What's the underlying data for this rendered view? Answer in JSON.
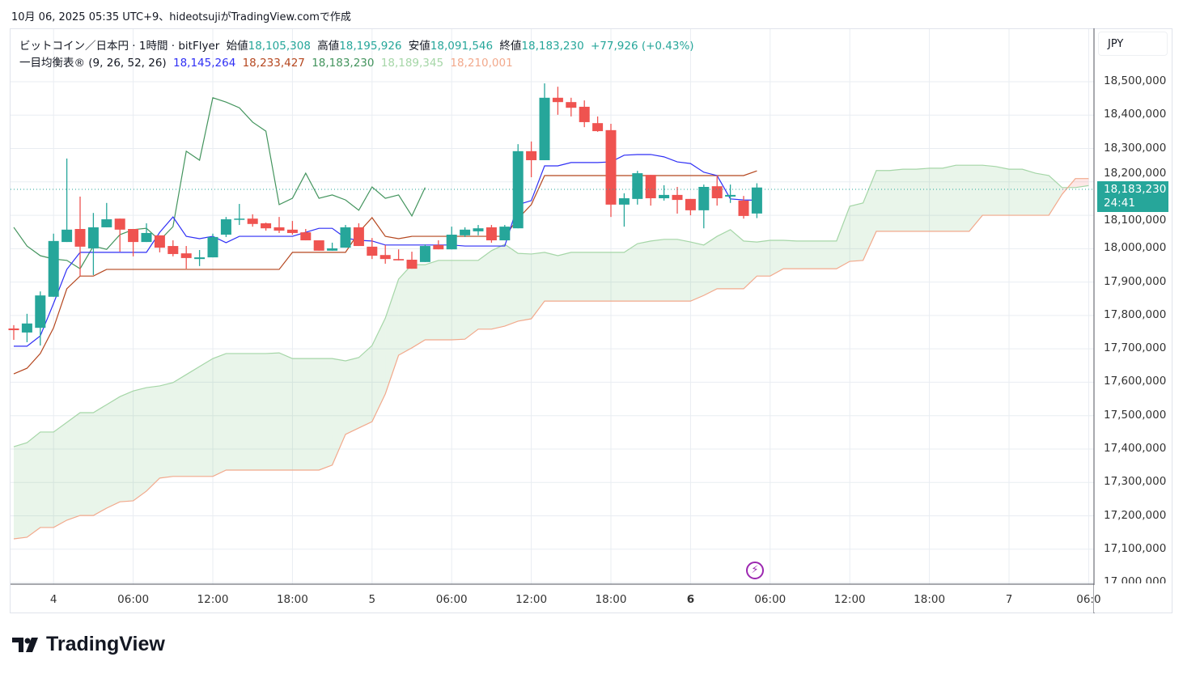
{
  "header": {
    "caption": "10月 06, 2025 05:35 UTC+9、hideotsujiがTradingView.comで作成"
  },
  "legend": {
    "symbol": "ビットコイン／日本円 · 1時間 · bitFlyer",
    "open_label": "始値",
    "open": "18,105,308",
    "high_label": "高値",
    "high": "18,195,926",
    "low_label": "安値",
    "low": "18,091,546",
    "close_label": "終値",
    "close": "18,183,230",
    "change": "+77,926 (+0.43%)",
    "indicator": "一目均衡表® (9, 26, 52, 26)",
    "tenkan": "18,145,264",
    "kijun": "18,233,427",
    "chikou": "18,183,230",
    "senkou_a": "18,189,345",
    "senkou_b": "18,210,001"
  },
  "price_axis": {
    "currency": "JPY",
    "last_price": "18,183,230",
    "countdown": "24:41"
  },
  "brand": {
    "name": "TradingView"
  },
  "colors": {
    "up": "#26a69a",
    "down": "#ef5350",
    "tenkan": "#2f2ff5",
    "kijun": "#b5471f",
    "chikou": "#43945d",
    "senkou_a": "#a5d6a7",
    "senkou_b": "#f2a98c",
    "cloud_up": "rgba(76,175,80,0.12)",
    "cloud_down": "rgba(244,67,54,0.12)"
  },
  "chart_data": {
    "type": "candlestick",
    "title": "ビットコイン／日本円 · 1時間 · bitFlyer",
    "interval": "1h",
    "price_unit": "JPY thousands",
    "ylim": [
      17000,
      18550
    ],
    "y_ticks": [
      "18,500,000",
      "18,400,000",
      "18,300,000",
      "18,200,000",
      "18,100,000",
      "18,000,000",
      "17,900,000",
      "17,800,000",
      "17,700,000",
      "17,600,000",
      "17,500,000",
      "17,400,000",
      "17,300,000",
      "17,200,000",
      "17,100,000",
      "17,000,000"
    ],
    "x_ticks": [
      {
        "bar": 3,
        "label": "4",
        "bold": false
      },
      {
        "bar": 9,
        "label": "06:00",
        "bold": false
      },
      {
        "bar": 15,
        "label": "12:00",
        "bold": false
      },
      {
        "bar": 21,
        "label": "18:00",
        "bold": false
      },
      {
        "bar": 27,
        "label": "5",
        "bold": false
      },
      {
        "bar": 33,
        "label": "06:00",
        "bold": false
      },
      {
        "bar": 39,
        "label": "12:00",
        "bold": false
      },
      {
        "bar": 45,
        "label": "18:00",
        "bold": false
      },
      {
        "bar": 51,
        "label": "6",
        "bold": true
      },
      {
        "bar": 57,
        "label": "06:00",
        "bold": false
      },
      {
        "bar": 63,
        "label": "12:00",
        "bold": false
      },
      {
        "bar": 69,
        "label": "18:00",
        "bold": false
      },
      {
        "bar": 75,
        "label": "7",
        "bold": false
      },
      {
        "bar": 81,
        "label": "06:0",
        "bold": false
      }
    ],
    "ohlc": [
      [
        17761,
        17771,
        17727,
        17756
      ],
      [
        17749,
        17805,
        17720,
        17776
      ],
      [
        17763,
        17872,
        17710,
        17860
      ],
      [
        17856,
        18045,
        17856,
        18023
      ],
      [
        18020,
        18270,
        18020,
        18057
      ],
      [
        18059,
        18156,
        17918,
        18006
      ],
      [
        18001,
        18107,
        17921,
        18064
      ],
      [
        18064,
        18137,
        18064,
        18088
      ],
      [
        18090,
        18090,
        17991,
        18057
      ],
      [
        18059,
        18059,
        17977,
        18020
      ],
      [
        18020,
        18076,
        18020,
        18047
      ],
      [
        18040,
        18040,
        17989,
        18003
      ],
      [
        18008,
        18025,
        17977,
        17984
      ],
      [
        17986,
        18008,
        17940,
        17972
      ],
      [
        17969,
        17996,
        17948,
        17974
      ],
      [
        17974,
        18045,
        17974,
        18035
      ],
      [
        18042,
        18095,
        18035,
        18088
      ],
      [
        18088,
        18134,
        18071,
        18090
      ],
      [
        18090,
        18103,
        18066,
        18074
      ],
      [
        18076,
        18078,
        18054,
        18061
      ],
      [
        18064,
        18095,
        18047,
        18054
      ],
      [
        18057,
        18083,
        18042,
        18047
      ],
      [
        18049,
        18059,
        18025,
        18025
      ],
      [
        18025,
        18025,
        17994,
        17994
      ],
      [
        17994,
        18018,
        17994,
        18001
      ],
      [
        18003,
        18071,
        18003,
        18064
      ],
      [
        18064,
        18076,
        18008,
        18008
      ],
      [
        18006,
        18032,
        17969,
        17979
      ],
      [
        17981,
        18011,
        17955,
        17969
      ],
      [
        17969,
        17998,
        17965,
        17965
      ],
      [
        17967,
        17991,
        17940,
        17940
      ],
      [
        17960,
        18013,
        17960,
        18008
      ],
      [
        18011,
        18025,
        17998,
        17998
      ],
      [
        17998,
        18066,
        17998,
        18042
      ],
      [
        18040,
        18064,
        18035,
        18057
      ],
      [
        18052,
        18071,
        18040,
        18061
      ],
      [
        18064,
        18071,
        18018,
        18025
      ],
      [
        18025,
        18071,
        18025,
        18066
      ],
      [
        18061,
        18313,
        18061,
        18292
      ],
      [
        18292,
        18321,
        18214,
        18265
      ],
      [
        18265,
        18495,
        18265,
        18452
      ],
      [
        18452,
        18485,
        18401,
        18439
      ],
      [
        18439,
        18452,
        18396,
        18422
      ],
      [
        18425,
        18444,
        18364,
        18379
      ],
      [
        18376,
        18396,
        18350,
        18352
      ],
      [
        18355,
        18374,
        18095,
        18132
      ],
      [
        18132,
        18166,
        18066,
        18151
      ],
      [
        18149,
        18233,
        18132,
        18226
      ],
      [
        18221,
        18221,
        18129,
        18151
      ],
      [
        18151,
        18190,
        18144,
        18161
      ],
      [
        18161,
        18185,
        18105,
        18146
      ],
      [
        18149,
        18149,
        18100,
        18115
      ],
      [
        18115,
        18192,
        18061,
        18185
      ],
      [
        18187,
        18219,
        18129,
        18151
      ],
      [
        18156,
        18192,
        18137,
        18161
      ],
      [
        18144,
        18158,
        18090,
        18098
      ],
      [
        18105.308,
        18195.926,
        18091.546,
        18183.23
      ]
    ],
    "tenkan": [
      17708,
      17708,
      17739,
      17836,
      17938,
      17989,
      17989,
      17989,
      17989,
      17989,
      17989,
      18049,
      18095,
      18037,
      18030,
      18037,
      18018,
      18037,
      18037,
      18037,
      18037,
      18037,
      18049,
      18061,
      18061,
      18032,
      18025,
      18023,
      18011,
      18011,
      18011,
      18011,
      18011,
      18011,
      18008,
      18008,
      18008,
      18008,
      18132,
      18144,
      18248,
      18248,
      18258,
      18258,
      18258,
      18260,
      18280,
      18282,
      18282,
      18275,
      18260,
      18255,
      18229,
      18219,
      18149,
      18146,
      18145
    ],
    "kijun": [
      17625,
      17642,
      17686,
      17763,
      17880,
      17918,
      17918,
      17938,
      17938,
      17938,
      17938,
      17938,
      17938,
      17938,
      17938,
      17938,
      17938,
      17938,
      17938,
      17938,
      17938,
      17989,
      17989,
      17989,
      17989,
      17989,
      18049,
      18093,
      18037,
      18030,
      18037,
      18037,
      18037,
      18037,
      18037,
      18037,
      18037,
      18037,
      18090,
      18132,
      18219,
      18219,
      18219,
      18219,
      18219,
      18219,
      18219,
      18219,
      18219,
      18219,
      18219,
      18219,
      18219,
      18219,
      18219,
      18219,
      18233
    ],
    "chikou_shift": 25,
    "senkou_a": [
      17407,
      17419,
      17451,
      17451,
      17480,
      17509,
      17509,
      17533,
      17557,
      17574,
      17584,
      17589,
      17599,
      17623,
      17647,
      17671,
      17686,
      17686,
      17686,
      17686,
      17688,
      17671,
      17671,
      17671,
      17671,
      17664,
      17674,
      17710,
      17792,
      17909,
      17952,
      17952,
      17965,
      17965,
      17965,
      17965,
      17994,
      18013,
      17986,
      17984,
      17989,
      17979,
      17989,
      17989,
      17989,
      17989,
      17989,
      18015,
      18023,
      18028,
      18028,
      18020,
      18011,
      18037,
      18057,
      18023,
      18020,
      18025,
      18025,
      18023,
      18023,
      18023,
      18023,
      18127,
      18137,
      18234,
      18234,
      18238,
      18238,
      18241,
      18241,
      18250,
      18250,
      18250,
      18246,
      18238,
      18238,
      18226,
      18219,
      18183,
      18183,
      18189
    ],
    "senkou_b": [
      17131,
      17136,
      17165,
      17165,
      17187,
      17201,
      17201,
      17223,
      17242,
      17245,
      17274,
      17313,
      17318,
      17318,
      17318,
      17318,
      17337,
      17337,
      17337,
      17337,
      17337,
      17337,
      17337,
      17337,
      17352,
      17444,
      17463,
      17482,
      17565,
      17681,
      17703,
      17727,
      17727,
      17727,
      17729,
      17759,
      17759,
      17768,
      17783,
      17790,
      17843,
      17843,
      17843,
      17843,
      17843,
      17843,
      17843,
      17843,
      17843,
      17843,
      17843,
      17843,
      17860,
      17880,
      17880,
      17880,
      17918,
      17918,
      17940,
      17940,
      17940,
      17940,
      17940,
      17962,
      17965,
      18052,
      18052,
      18052,
      18052,
      18052,
      18052,
      18052,
      18052,
      18100,
      18100,
      18100,
      18100,
      18100,
      18100,
      18163,
      18210,
      18210
    ]
  }
}
